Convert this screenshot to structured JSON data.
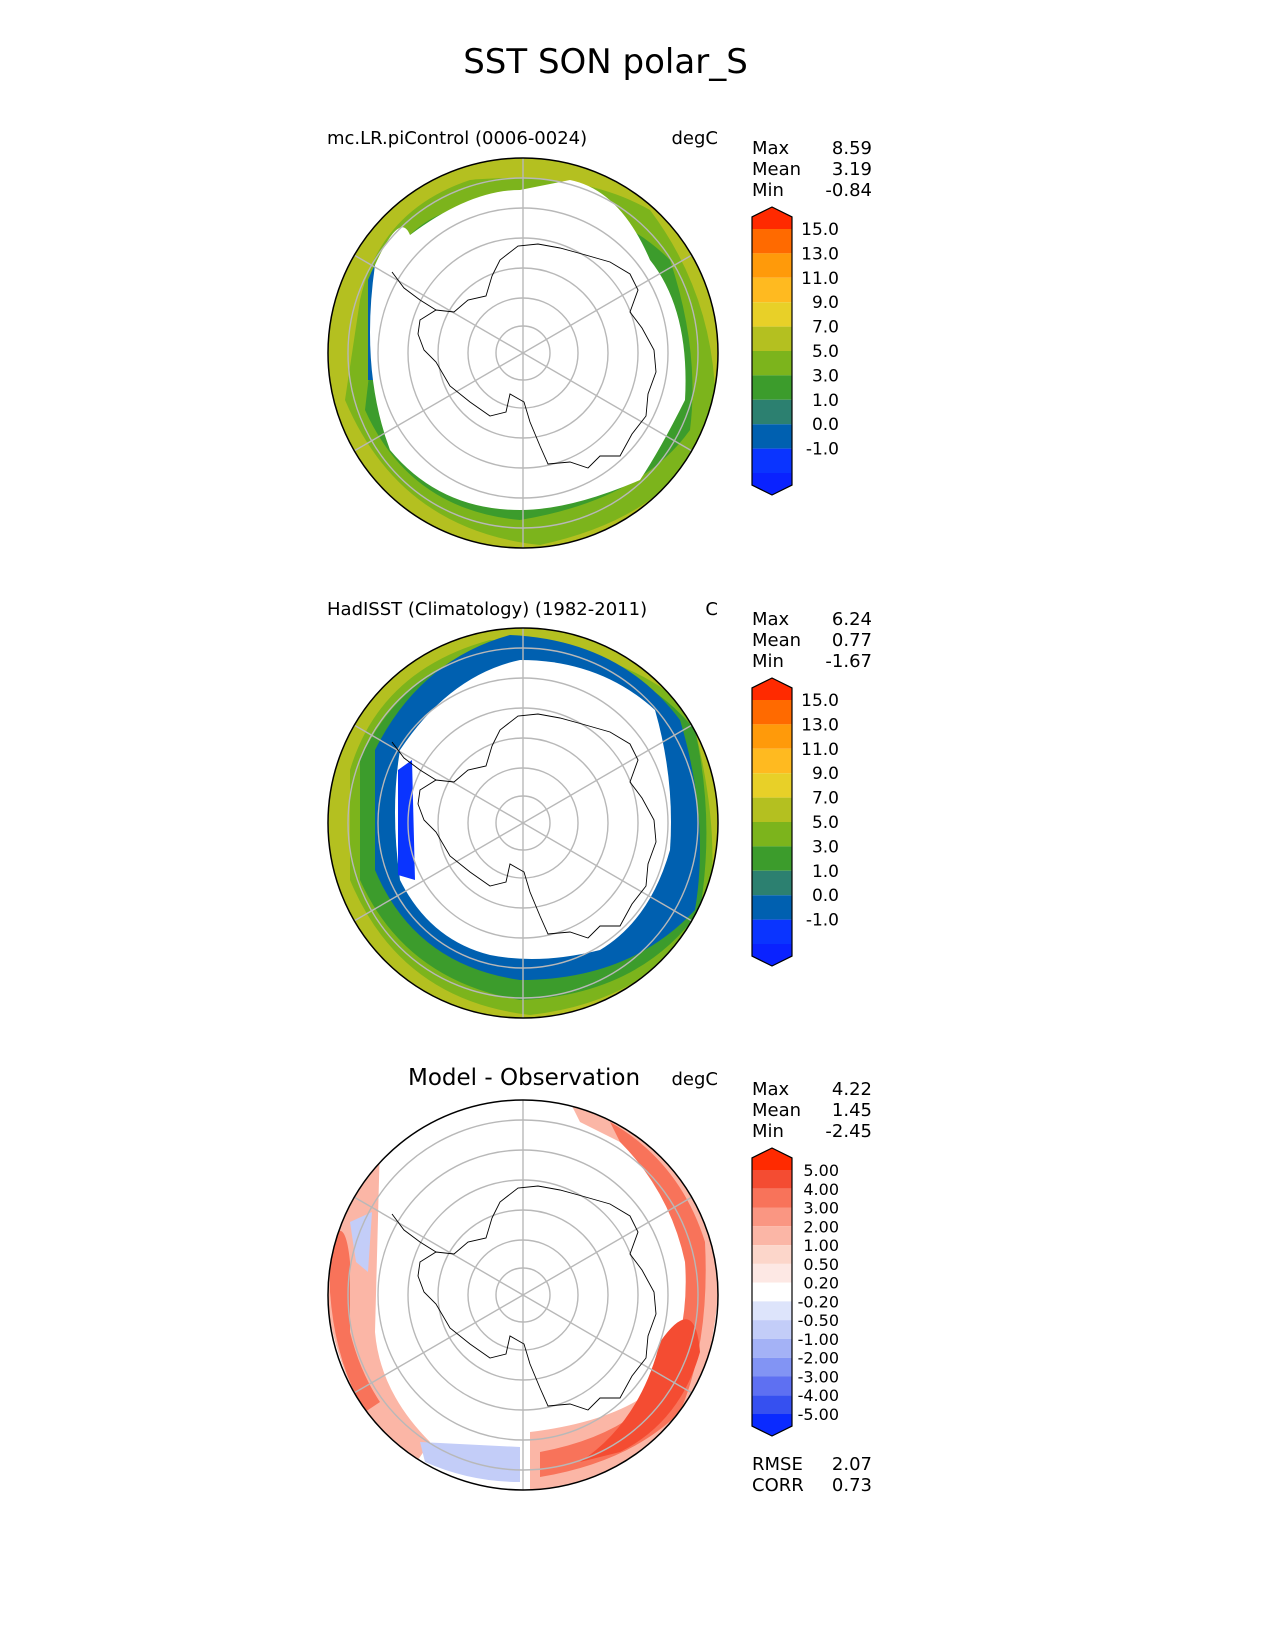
{
  "figure": {
    "title": "SST SON polar_S"
  },
  "chart_data": [
    {
      "type": "heatmap",
      "projection": "south polar stereographic",
      "title": "mc.LR.piControl (0006-0024)",
      "units": "degC",
      "stats": [
        {
          "label": "Max",
          "value": "8.59"
        },
        {
          "label": "Mean",
          "value": "3.19"
        },
        {
          "label": "Min",
          "value": "-0.84"
        }
      ],
      "colorbar": {
        "levels": [
          "15.0",
          "13.0",
          "11.0",
          "9.0",
          "7.0",
          "5.0",
          "3.0",
          "1.0",
          "0.0",
          "-1.0"
        ],
        "colors": [
          "#ff2a00",
          "#ff6a00",
          "#ff9a0a",
          "#ffba20",
          "#e8d028",
          "#b4c020",
          "#7cb41c",
          "#3c9c2c",
          "#2c8070",
          "#0060b0",
          "#0a34ff",
          "#0a22ff"
        ]
      },
      "value_range_shown": [
        -0.84,
        8.59
      ]
    },
    {
      "type": "heatmap",
      "projection": "south polar stereographic",
      "title": "HadISST (Climatology) (1982-2011)",
      "units": "C",
      "stats": [
        {
          "label": "Max",
          "value": "6.24"
        },
        {
          "label": "Mean",
          "value": "0.77"
        },
        {
          "label": "Min",
          "value": "-1.67"
        }
      ],
      "colorbar": {
        "levels": [
          "15.0",
          "13.0",
          "11.0",
          "9.0",
          "7.0",
          "5.0",
          "3.0",
          "1.0",
          "0.0",
          "-1.0"
        ],
        "colors": [
          "#ff2a00",
          "#ff6a00",
          "#ff9a0a",
          "#ffba20",
          "#e8d028",
          "#b4c020",
          "#7cb41c",
          "#3c9c2c",
          "#2c8070",
          "#0060b0",
          "#0a34ff",
          "#0a22ff"
        ]
      },
      "value_range_shown": [
        -1.67,
        6.24
      ]
    },
    {
      "type": "heatmap",
      "projection": "south polar stereographic",
      "title": "Model - Observation",
      "units": "degC",
      "stats": [
        {
          "label": "Max",
          "value": "4.22"
        },
        {
          "label": "Mean",
          "value": "1.45"
        },
        {
          "label": "Min",
          "value": "-2.45"
        }
      ],
      "extra_stats": [
        {
          "label": "RMSE",
          "value": "2.07"
        },
        {
          "label": "CORR",
          "value": "0.73"
        }
      ],
      "colorbar": {
        "levels": [
          "5.00",
          "4.00",
          "3.00",
          "2.00",
          "1.00",
          "0.50",
          "0.20",
          "-0.20",
          "-0.50",
          "-1.00",
          "-2.00",
          "-3.00",
          "-4.00",
          "-5.00"
        ],
        "colors": [
          "#ff2a00",
          "#f44c32",
          "#f8735a",
          "#fa9682",
          "#fbb6a6",
          "#fcd6ca",
          "#fde8e4",
          "#ffffff",
          "#dde4fb",
          "#c3cdf8",
          "#a4b2f6",
          "#8294f4",
          "#5e70f2",
          "#3650f0",
          "#0a2aff"
        ]
      },
      "value_range_shown": [
        -2.45,
        4.22
      ]
    }
  ]
}
